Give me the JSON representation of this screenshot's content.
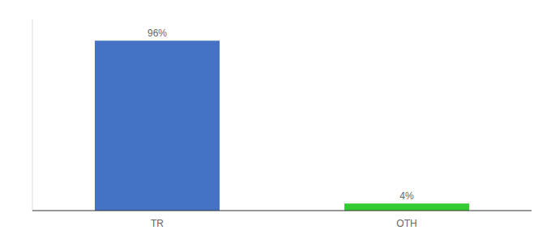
{
  "chart_data": {
    "type": "bar",
    "categories": [
      "TR",
      "OTH"
    ],
    "values": [
      96,
      4
    ],
    "value_labels": [
      "96%",
      "4%"
    ],
    "colors": [
      "#4472c4",
      "#33cc33"
    ],
    "ylim": [
      0,
      108
    ],
    "data_labels": true,
    "tick_labels": "x"
  }
}
